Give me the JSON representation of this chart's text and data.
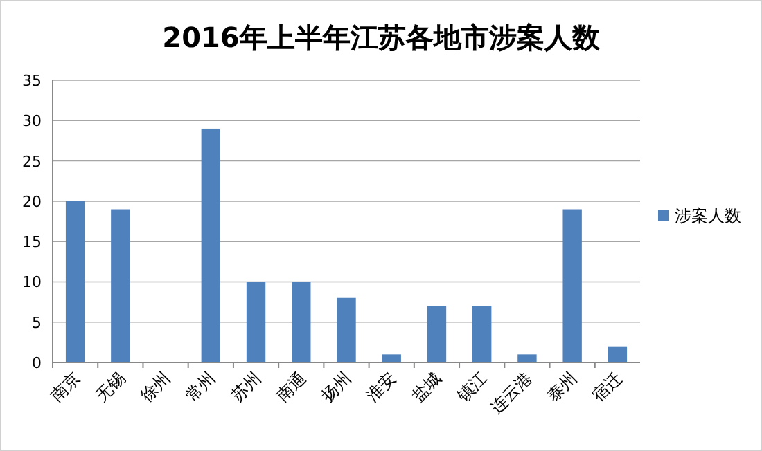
{
  "chart_data": {
    "type": "bar",
    "title": "2016年上半年江苏各地市涉案人数",
    "categories": [
      "南京",
      "无锡",
      "徐州",
      "常州",
      "苏州",
      "南通",
      "扬州",
      "淮安",
      "盐城",
      "镇江",
      "连云港",
      "泰州",
      "宿迁"
    ],
    "series": [
      {
        "name": "涉案人数",
        "color": "#4f81bd",
        "values": [
          20,
          19,
          0,
          29,
          10,
          10,
          8,
          1,
          7,
          7,
          1,
          19,
          2
        ]
      }
    ],
    "ylim": [
      0,
      35
    ],
    "yticks": [
      0,
      5,
      10,
      15,
      20,
      25,
      30,
      35
    ],
    "grid": "y",
    "legend": "right"
  }
}
